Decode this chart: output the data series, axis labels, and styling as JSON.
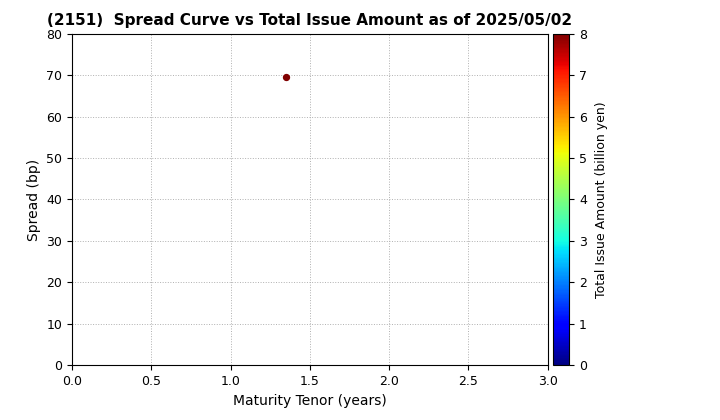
{
  "title": "(2151)  Spread Curve vs Total Issue Amount as of 2025/05/02",
  "xlabel": "Maturity Tenor (years)",
  "ylabel": "Spread (bp)",
  "colorbar_label": "Total Issue Amount (billion yen)",
  "xlim": [
    0.0,
    3.0
  ],
  "ylim": [
    0,
    80
  ],
  "xticks": [
    0.0,
    0.5,
    1.0,
    1.5,
    2.0,
    2.5,
    3.0
  ],
  "yticks": [
    0,
    10,
    20,
    30,
    40,
    50,
    60,
    70,
    80
  ],
  "colorbar_ticks": [
    0,
    1,
    2,
    3,
    4,
    5,
    6,
    7,
    8
  ],
  "colorbar_vmin": 0,
  "colorbar_vmax": 8,
  "scatter_x": [
    1.35
  ],
  "scatter_y": [
    69.5
  ],
  "scatter_color": [
    8.0
  ],
  "scatter_size": 18,
  "grid_color": "#b0b0b0",
  "grid_style": "dotted",
  "background_color": "#ffffff",
  "title_fontsize": 11,
  "title_fontweight": "bold",
  "axis_label_fontsize": 10,
  "tick_fontsize": 9,
  "colorbar_label_fontsize": 9
}
